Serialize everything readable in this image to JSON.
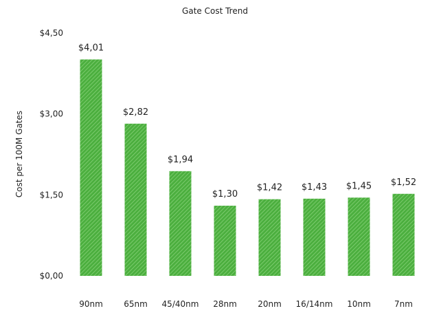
{
  "chart_data": {
    "type": "bar",
    "title": "Gate Cost Trend",
    "xlabel": "",
    "ylabel": "Cost per 100M Gates",
    "categories": [
      "90nm",
      "65nm",
      "45/40nm",
      "28nm",
      "20nm",
      "16/14nm",
      "10nm",
      "7nm"
    ],
    "values": [
      4.01,
      2.82,
      1.94,
      1.3,
      1.42,
      1.43,
      1.45,
      1.52
    ],
    "data_labels": [
      "$4,01",
      "$2,82",
      "$1,94",
      "$1,30",
      "$1,42",
      "$1,43",
      "$1,45",
      "$1,52"
    ],
    "ylim": [
      0,
      4.5
    ],
    "yticks": [
      0,
      1.5,
      3.0,
      4.5
    ],
    "ytick_labels": [
      "$0,00",
      "$1,50",
      "$3,00",
      "$4,50"
    ],
    "grid": false,
    "legend": "none",
    "bar_color": "#4caf3f",
    "bar_hatch_color": "#8ed67f"
  }
}
